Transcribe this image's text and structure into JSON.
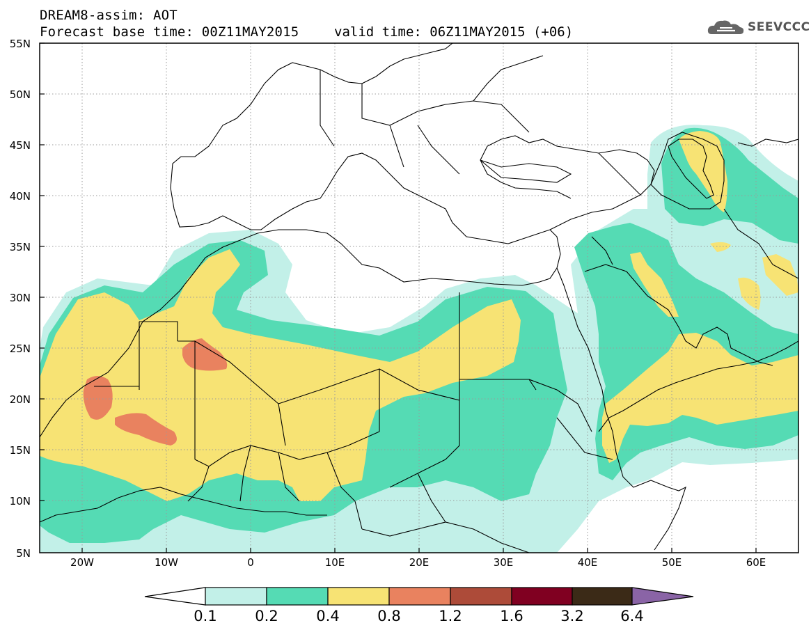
{
  "header": {
    "title": "DREAM8-assim: AOT",
    "base_time": "Forecast base time: 00Z11MAY2015",
    "valid_time": "valid time: 06Z11MAY2015 (+06)",
    "logo_text": "SEEVCCC"
  },
  "axes": {
    "lon_range": [
      -25,
      65
    ],
    "lat_range": [
      5,
      55
    ],
    "lat_labels": [
      "55N",
      "50N",
      "45N",
      "40N",
      "35N",
      "30N",
      "25N",
      "20N",
      "15N",
      "10N",
      "5N"
    ],
    "lon_labels": [
      "20W",
      "10W",
      "0",
      "10E",
      "20E",
      "30E",
      "40E",
      "50E",
      "60E"
    ],
    "grid": "dotted"
  },
  "colorbar": {
    "labels": [
      "0.1",
      "0.2",
      "0.4",
      "0.8",
      "1.2",
      "1.6",
      "3.2",
      "6.4"
    ],
    "colors": [
      "#ffffff",
      "#c2f0e8",
      "#55dbb4",
      "#f7e374",
      "#e9825f",
      "#ad4b39",
      "#800021",
      "#3b2a17",
      "#8a64a6"
    ]
  },
  "icons": [
    "cloud-logo-icon"
  ]
}
